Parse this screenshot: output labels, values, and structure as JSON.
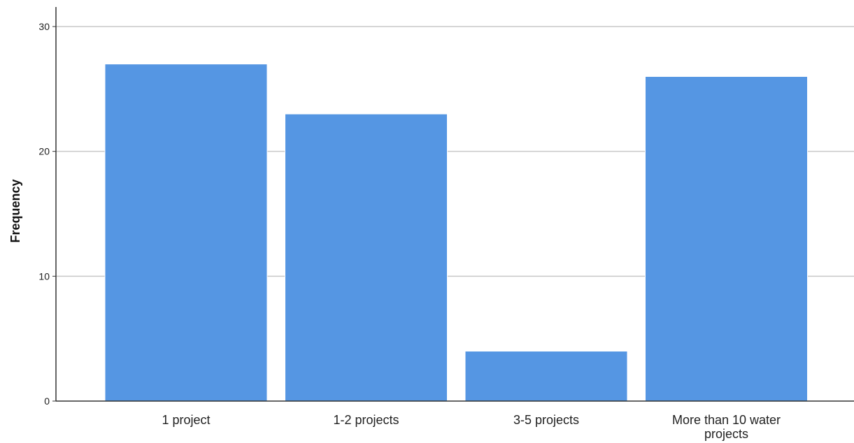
{
  "chart_data": {
    "type": "bar",
    "title": "",
    "xlabel": "",
    "ylabel": "Frequency",
    "categories": [
      "1 project",
      "1-2 projects",
      "3-5 projects",
      "More than 10 water projects"
    ],
    "category_label_lines": [
      [
        "1 project"
      ],
      [
        "1-2 projects"
      ],
      [
        "3-5 projects"
      ],
      [
        "More than 10 water",
        "projects"
      ]
    ],
    "values": [
      27,
      23,
      4,
      26
    ],
    "ylim": [
      0,
      30
    ],
    "yticks": [
      0,
      10,
      20,
      30
    ],
    "grid": "horizontal",
    "legend": "none",
    "colors": {
      "bar": "#5596e3",
      "bar_edge": "#ffffff",
      "grid": "#c8c8c8",
      "axis": "#333333"
    }
  }
}
